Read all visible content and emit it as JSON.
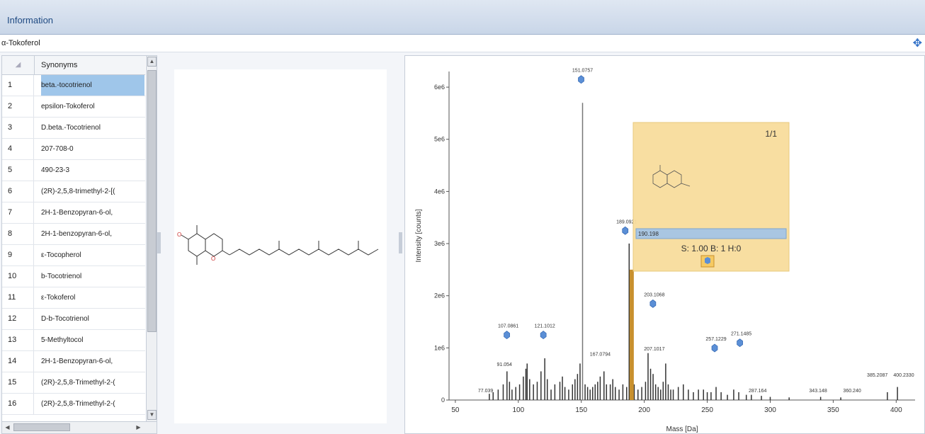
{
  "header": {
    "title": "Information"
  },
  "compound": {
    "name": "α-Tokoferol"
  },
  "synonyms": {
    "column_header": "Synonyms",
    "rows": [
      {
        "n": "1",
        "name": "beta.-tocotrienol"
      },
      {
        "n": "2",
        "name": "epsilon-Tokoferol"
      },
      {
        "n": "3",
        "name": "D.beta.-Tocotrienol"
      },
      {
        "n": "4",
        "name": "207-708-0"
      },
      {
        "n": "5",
        "name": "490-23-3"
      },
      {
        "n": "6",
        "name": "(2R)-2,5,8-trimethyl-2-[("
      },
      {
        "n": "7",
        "name": "2H-1-Benzopyran-6-ol,"
      },
      {
        "n": "8",
        "name": "2H-1-benzopyran-6-ol,"
      },
      {
        "n": "9",
        "name": "ε-Tocopherol"
      },
      {
        "n": "10",
        "name": "b-Tocotrienol"
      },
      {
        "n": "11",
        "name": "ε-Tokoferol"
      },
      {
        "n": "12",
        "name": "D-b-Tocotrienol"
      },
      {
        "n": "13",
        "name": "5-Methyltocol"
      },
      {
        "n": "14",
        "name": "2H-1-Benzopyran-6-ol,"
      },
      {
        "n": "15",
        "name": "(2R)-2,5,8-Trimethyl-2-("
      },
      {
        "n": "16",
        "name": "(2R)-2,5,8-Trimethyl-2-("
      }
    ]
  },
  "chart_data": {
    "type": "bar",
    "title": "",
    "xlabel": "Mass [Da]",
    "ylabel": "Intensity [counts]",
    "xlim": [
      45,
      415
    ],
    "ylim": [
      0,
      6.3
    ],
    "x_ticks": [
      "50",
      "100",
      "150",
      "200",
      "250",
      "300",
      "350",
      "400"
    ],
    "y_ticks": [
      "0",
      "1e6",
      "2e6",
      "3e6",
      "4e6",
      "5e6",
      "6e6"
    ],
    "tick_values_x": [
      50,
      100,
      150,
      200,
      250,
      300,
      350,
      400
    ],
    "tick_values_y": [
      0,
      1,
      2,
      3,
      4,
      5,
      6
    ],
    "peaks": [
      {
        "x": 77,
        "y": 0.12
      },
      {
        "x": 80,
        "y": 0.15
      },
      {
        "x": 84,
        "y": 0.2
      },
      {
        "x": 88,
        "y": 0.3
      },
      {
        "x": 91,
        "y": 0.55
      },
      {
        "x": 93,
        "y": 0.35
      },
      {
        "x": 95,
        "y": 0.2
      },
      {
        "x": 98,
        "y": 0.25
      },
      {
        "x": 101,
        "y": 0.3
      },
      {
        "x": 104,
        "y": 0.45
      },
      {
        "x": 106,
        "y": 0.6
      },
      {
        "x": 107,
        "y": 0.7
      },
      {
        "x": 109,
        "y": 0.4
      },
      {
        "x": 112,
        "y": 0.3
      },
      {
        "x": 115,
        "y": 0.35
      },
      {
        "x": 118,
        "y": 0.55
      },
      {
        "x": 121,
        "y": 0.8
      },
      {
        "x": 123,
        "y": 0.4
      },
      {
        "x": 126,
        "y": 0.2
      },
      {
        "x": 129,
        "y": 0.3
      },
      {
        "x": 133,
        "y": 0.35
      },
      {
        "x": 135,
        "y": 0.45
      },
      {
        "x": 137,
        "y": 0.25
      },
      {
        "x": 140,
        "y": 0.2
      },
      {
        "x": 143,
        "y": 0.3
      },
      {
        "x": 145,
        "y": 0.4
      },
      {
        "x": 147,
        "y": 0.5
      },
      {
        "x": 149,
        "y": 0.7
      },
      {
        "x": 151,
        "y": 5.7
      },
      {
        "x": 153,
        "y": 0.3
      },
      {
        "x": 155,
        "y": 0.25
      },
      {
        "x": 157,
        "y": 0.2
      },
      {
        "x": 159,
        "y": 0.25
      },
      {
        "x": 161,
        "y": 0.3
      },
      {
        "x": 163,
        "y": 0.35
      },
      {
        "x": 165,
        "y": 0.45
      },
      {
        "x": 168,
        "y": 0.55
      },
      {
        "x": 170,
        "y": 0.3
      },
      {
        "x": 173,
        "y": 0.3
      },
      {
        "x": 175,
        "y": 0.4
      },
      {
        "x": 177,
        "y": 0.25
      },
      {
        "x": 180,
        "y": 0.2
      },
      {
        "x": 183,
        "y": 0.3
      },
      {
        "x": 186,
        "y": 0.25
      },
      {
        "x": 188,
        "y": 3.0
      },
      {
        "x": 192,
        "y": 0.3
      },
      {
        "x": 195,
        "y": 0.2
      },
      {
        "x": 198,
        "y": 0.25
      },
      {
        "x": 201,
        "y": 0.35
      },
      {
        "x": 203,
        "y": 0.9
      },
      {
        "x": 205,
        "y": 0.6
      },
      {
        "x": 207,
        "y": 0.5
      },
      {
        "x": 209,
        "y": 0.3
      },
      {
        "x": 211,
        "y": 0.25
      },
      {
        "x": 213,
        "y": 0.2
      },
      {
        "x": 215,
        "y": 0.35
      },
      {
        "x": 217,
        "y": 0.7
      },
      {
        "x": 219,
        "y": 0.3
      },
      {
        "x": 221,
        "y": 0.2
      },
      {
        "x": 223,
        "y": 0.2
      },
      {
        "x": 227,
        "y": 0.25
      },
      {
        "x": 231,
        "y": 0.3
      },
      {
        "x": 235,
        "y": 0.2
      },
      {
        "x": 239,
        "y": 0.15
      },
      {
        "x": 243,
        "y": 0.2
      },
      {
        "x": 247,
        "y": 0.2
      },
      {
        "x": 250,
        "y": 0.15
      },
      {
        "x": 253,
        "y": 0.15
      },
      {
        "x": 257,
        "y": 0.25
      },
      {
        "x": 261,
        "y": 0.15
      },
      {
        "x": 266,
        "y": 0.1
      },
      {
        "x": 271,
        "y": 0.2
      },
      {
        "x": 275,
        "y": 0.15
      },
      {
        "x": 281,
        "y": 0.1
      },
      {
        "x": 285,
        "y": 0.1
      },
      {
        "x": 293,
        "y": 0.08
      },
      {
        "x": 300,
        "y": 0.06
      },
      {
        "x": 315,
        "y": 0.05
      },
      {
        "x": 340,
        "y": 0.06
      },
      {
        "x": 356,
        "y": 0.05
      },
      {
        "x": 393,
        "y": 0.15
      },
      {
        "x": 401,
        "y": 0.25
      }
    ],
    "highlight_peak": {
      "x": 190,
      "y": 2.5
    },
    "annotations": [
      {
        "label": "151.0757",
        "x": 151,
        "y": 6.1,
        "structure": true
      },
      {
        "label": "189.0921",
        "x": 186,
        "y": 3.2,
        "structure": true
      },
      {
        "label": "203.1068",
        "x": 208,
        "y": 1.8,
        "structure": true
      },
      {
        "label": "207.1017",
        "x": 208,
        "y": 0.95
      },
      {
        "label": "107.0861",
        "x": 92,
        "y": 1.2,
        "structure": true
      },
      {
        "label": "121.1012",
        "x": 121,
        "y": 1.2,
        "structure": true
      },
      {
        "label": "91.054",
        "x": 89,
        "y": 0.65
      },
      {
        "label": "77.039",
        "x": 74,
        "y": 0.15
      },
      {
        "label": "167.0794",
        "x": 165,
        "y": 0.85
      },
      {
        "label": "257.1229",
        "x": 257,
        "y": 0.95,
        "structure": true
      },
      {
        "label": "271.1485",
        "x": 277,
        "y": 1.05,
        "structure": true
      },
      {
        "label": "287.164",
        "x": 290,
        "y": 0.15
      },
      {
        "label": "343.148",
        "x": 338,
        "y": 0.15
      },
      {
        "label": "360.240",
        "x": 365,
        "y": 0.15
      },
      {
        "label": "385.2087",
        "x": 385,
        "y": 0.45
      },
      {
        "label": "400.2330",
        "x": 406,
        "y": 0.45
      }
    ],
    "tooltip": {
      "page": "1/1",
      "formula_bar": "190.198",
      "score": "S: 1.00 B: 1 H:0"
    }
  }
}
